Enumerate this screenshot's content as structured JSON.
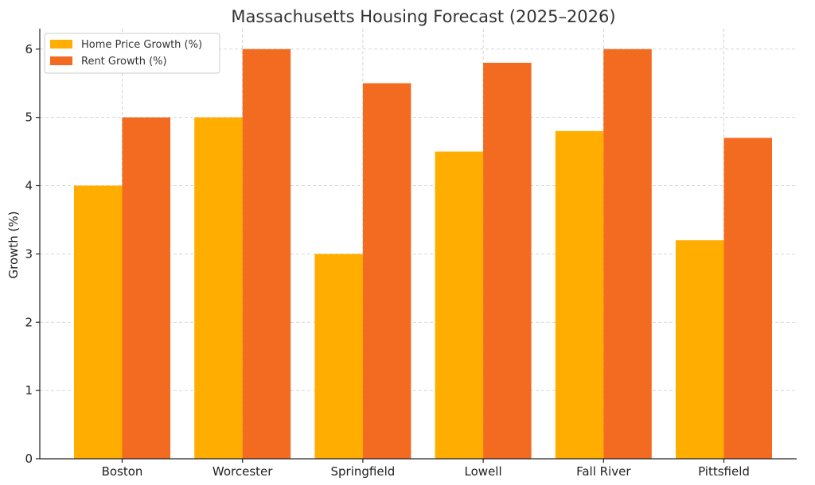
{
  "chart_data": {
    "type": "bar",
    "title": "Massachusetts Housing Forecast (2025–2026)",
    "xlabel": "",
    "ylabel": "Growth (%)",
    "categories": [
      "Boston",
      "Worcester",
      "Springfield",
      "Lowell",
      "Fall River",
      "Pittsfield"
    ],
    "series": [
      {
        "name": "Home Price Growth (%)",
        "color": "#FFAE00",
        "values": [
          4.0,
          5.0,
          3.0,
          4.5,
          4.8,
          3.2
        ]
      },
      {
        "name": "Rent Growth (%)",
        "color": "#F26B21",
        "values": [
          5.0,
          6.0,
          5.5,
          5.8,
          6.0,
          4.7
        ]
      }
    ],
    "ylim": [
      0,
      6.3
    ],
    "yticks": [
      0,
      1,
      2,
      3,
      4,
      5,
      6
    ],
    "grid": true,
    "legend": "top-left"
  }
}
